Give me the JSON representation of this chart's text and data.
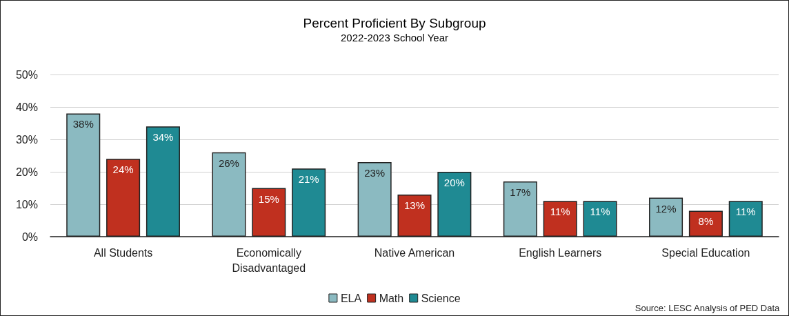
{
  "chart_data": {
    "type": "bar",
    "title": "Percent Proficient By Subgroup",
    "subtitle": "2022-2023 School Year",
    "categories": [
      "All Students",
      "Economically\nDisadvantaged",
      "Native American",
      "English Learners",
      "Special Education"
    ],
    "series": [
      {
        "name": "ELA",
        "color": "#8bbac1",
        "values": [
          38,
          26,
          23,
          17,
          12
        ],
        "value_labels": [
          "38%",
          "26%",
          "23%",
          "17%",
          "12%"
        ]
      },
      {
        "name": "Math",
        "color": "#c0301f",
        "values": [
          24,
          15,
          13,
          11,
          8
        ],
        "value_labels": [
          "24%",
          "15%",
          "13%",
          "11%",
          "8%"
        ]
      },
      {
        "name": "Science",
        "color": "#1f8a93",
        "values": [
          34,
          21,
          20,
          11,
          11
        ],
        "value_labels": [
          "34%",
          "21%",
          "20%",
          "11%",
          "11%"
        ]
      }
    ],
    "ylim": [
      0,
      50
    ],
    "yticks": [
      {
        "value": 0,
        "label": "0%"
      },
      {
        "value": 10,
        "label": "10%"
      },
      {
        "value": 20,
        "label": "20%"
      },
      {
        "value": 30,
        "label": "30%"
      },
      {
        "value": 40,
        "label": "40%"
      },
      {
        "value": 50,
        "label": "50%"
      }
    ],
    "grid": "y",
    "legend": "bottom",
    "annotations": [
      "Source: LESC Analysis of PED Data"
    ]
  }
}
